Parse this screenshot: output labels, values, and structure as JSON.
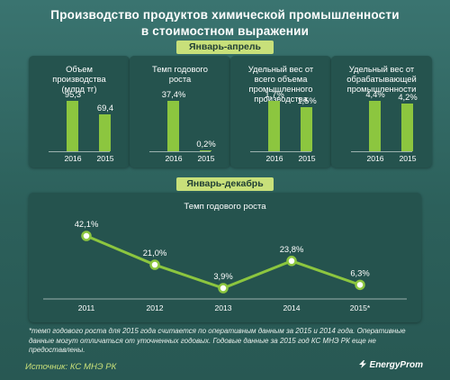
{
  "title_line1": "Производство продуктов химической промышленности",
  "title_line2": "в стоимостном выражении",
  "section1_label": "Январь-апрель",
  "section2_label": "Январь-декабрь",
  "colors": {
    "accent": "#8cc63f",
    "pill": "#c8e07a",
    "background": "#2f6460",
    "panel": "#25534e"
  },
  "chart_data": [
    {
      "type": "bar",
      "title": "Объем\nпроизводства\n(млрд тг)",
      "categories": [
        "2016",
        "2015"
      ],
      "values": [
        95.3,
        69.4
      ],
      "labels": [
        "95,3",
        "69,4"
      ]
    },
    {
      "type": "bar",
      "title": "Темп годового\nроста",
      "categories": [
        "2016",
        "2015"
      ],
      "values": [
        37.4,
        0.2
      ],
      "labels": [
        "37,4%",
        "0,2%"
      ]
    },
    {
      "type": "bar",
      "title": "Удельный вес от\nвсего объема\nпромышленного\nпроизводства",
      "categories": [
        "2016",
        "2015"
      ],
      "values": [
        1.7,
        1.5
      ],
      "labels": [
        "1,7%",
        "1,5%"
      ]
    },
    {
      "type": "bar",
      "title": "Удельный вес от\nобрабатывающей\nпромышленности",
      "categories": [
        "2016",
        "2015"
      ],
      "values": [
        4.4,
        4.2
      ],
      "labels": [
        "4,4%",
        "4,2%"
      ]
    },
    {
      "type": "line",
      "title": "Темп годового роста",
      "x": [
        "2011",
        "2012",
        "2013",
        "2014",
        "2015*"
      ],
      "values": [
        42.1,
        21.0,
        3.9,
        23.8,
        6.3
      ],
      "labels": [
        "42,1%",
        "21,0%",
        "3,9%",
        "23,8%",
        "6,3%"
      ]
    }
  ],
  "footnote": "*темп годового роста для 2015 года считается по оперативным данным за 2015 и 2014 года. Оперативные данные могут отличаться от уточненных годовых. Годовые данные за 2015 год КС МНЭ РК еще не предоставлены.",
  "source": "Источник: КС МНЭ РК",
  "brand": "EnergyProm"
}
